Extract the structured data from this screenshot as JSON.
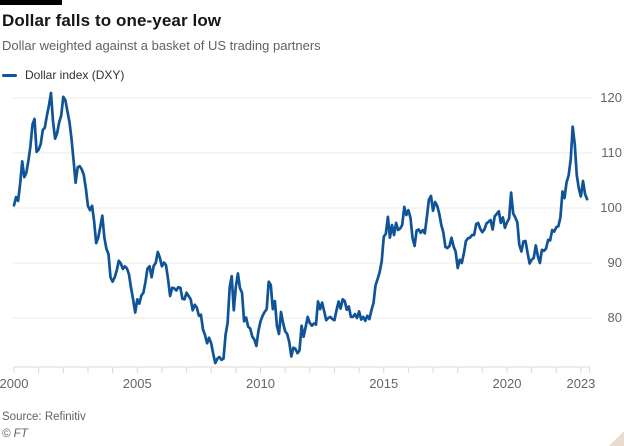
{
  "header": {
    "title": "Dollar falls to one-year low",
    "subtitle": "Dollar weighted against a basket of US trading partners"
  },
  "footer": {
    "source": "Source: Refinitiv",
    "copyright": "© FT"
  },
  "colors": {
    "line_blue": "#0f5499",
    "grid": "#f1eae2",
    "axis": "#e2d8cd",
    "tick": "#e2d8cd",
    "axis_text": "#6b6460",
    "subtitle_text": "#66605c",
    "title_text": "#181614",
    "corner_triangle": "#e9dbcf"
  },
  "chart_data": {
    "type": "line",
    "title": "Dollar falls to one-year low",
    "subtitle": "Dollar weighted against a basket of US trading partners",
    "xlabel": "",
    "ylabel": "",
    "ylim": [
      71,
      121.5
    ],
    "y_ticks": [
      120,
      110,
      100,
      90,
      80
    ],
    "x_ticks_labeled": [
      2000,
      2005,
      2010,
      2015,
      2020,
      2023
    ],
    "x_minor_tick_step_years": 1,
    "x_range": [
      2000,
      2023.35
    ],
    "grid": "horizontal",
    "legend_position": "top-left",
    "series": [
      {
        "name": "Dollar index (DXY)",
        "color": "#0f5499",
        "start_year": 2000,
        "interval_months": 1,
        "values": [
          100.5,
          102.0,
          101.3,
          104.5,
          108.5,
          105.6,
          106.4,
          108.6,
          111.2,
          115.2,
          116.2,
          110.2,
          110.6,
          111.6,
          114.2,
          114.6,
          116.8,
          118.6,
          120.9,
          115.8,
          112.6,
          113.6,
          115.6,
          116.8,
          120.2,
          119.6,
          117.6,
          115.6,
          112.6,
          108.6,
          104.6,
          107.4,
          107.6,
          107.0,
          106.0,
          103.5,
          100.4,
          99.6,
          100.4,
          97.6,
          93.6,
          94.6,
          96.6,
          98.6,
          94.6,
          92.6,
          91.6,
          87.4,
          86.6,
          87.4,
          88.6,
          90.4,
          89.9,
          88.9,
          89.4,
          89.0,
          87.9,
          85.4,
          83.4,
          81.0,
          83.4,
          82.6,
          84.1,
          84.6,
          86.6,
          89.0,
          89.4,
          87.4,
          89.5,
          90.0,
          92.0,
          91.0,
          89.4,
          90.1,
          89.6,
          87.0,
          84.0,
          85.5,
          85.4,
          85.0,
          85.6,
          85.5,
          83.5,
          83.4,
          84.6,
          84.0,
          83.4,
          81.4,
          82.4,
          81.9,
          80.4,
          80.6,
          77.9,
          76.9,
          75.4,
          76.4,
          75.4,
          73.4,
          71.8,
          72.6,
          72.9,
          72.4,
          72.6,
          77.0,
          79.1,
          85.6,
          87.6,
          81.4,
          85.6,
          88.1,
          85.4,
          84.6,
          79.4,
          80.1,
          78.4,
          78.1,
          76.6,
          76.1,
          74.9,
          77.6,
          79.4,
          80.4,
          81.1,
          81.6,
          86.6,
          86.0,
          81.6,
          83.1,
          78.6,
          77.1,
          81.1,
          79.1,
          77.6,
          77.1,
          75.6,
          73.0,
          74.6,
          74.4,
          73.6,
          74.1,
          78.6,
          76.6,
          78.4,
          80.2,
          79.1,
          78.6,
          79.0,
          78.8,
          83.0,
          81.6,
          82.8,
          81.2,
          79.6,
          80.0,
          80.2,
          79.8,
          79.6,
          81.4,
          83.0,
          81.7,
          83.4,
          83.1,
          81.5,
          82.1,
          80.2,
          80.2,
          80.7,
          80.0,
          81.2,
          79.7,
          80.2,
          79.5,
          80.4,
          79.8,
          81.4,
          82.7,
          85.9,
          87.1,
          88.3,
          90.3,
          94.8,
          95.3,
          98.4,
          94.6,
          96.9,
          95.1,
          97.3,
          96.0,
          96.3,
          96.9,
          100.2,
          98.7,
          99.6,
          98.2,
          94.6,
          93.1,
          95.9,
          96.1,
          95.5,
          96.0,
          95.4,
          98.4,
          101.5,
          102.2,
          99.5,
          101.1,
          100.4,
          99.0,
          96.9,
          95.6,
          92.9,
          92.7,
          93.1,
          94.6,
          93.0,
          92.1,
          89.1,
          90.6,
          90.0,
          91.8,
          94.0,
          94.5,
          94.6,
          95.1,
          95.1,
          97.1,
          97.3,
          96.2,
          95.6,
          96.1,
          97.2,
          97.5,
          97.8,
          96.1,
          98.5,
          98.9,
          99.4,
          97.3,
          98.3,
          96.4,
          97.4,
          98.1,
          102.8,
          99.0,
          98.3,
          97.4,
          93.3,
          92.1,
          93.9,
          94.0,
          91.9,
          89.9,
          90.6,
          90.9,
          93.2,
          91.3,
          90.0,
          92.4,
          92.2,
          92.6,
          94.2,
          94.1,
          96.0,
          95.7,
          96.5,
          96.7,
          98.3,
          103.0,
          101.8,
          104.7,
          105.9,
          108.8,
          114.8,
          111.5,
          105.9,
          103.5,
          102.1,
          104.9,
          102.5,
          101.6
        ]
      }
    ]
  }
}
